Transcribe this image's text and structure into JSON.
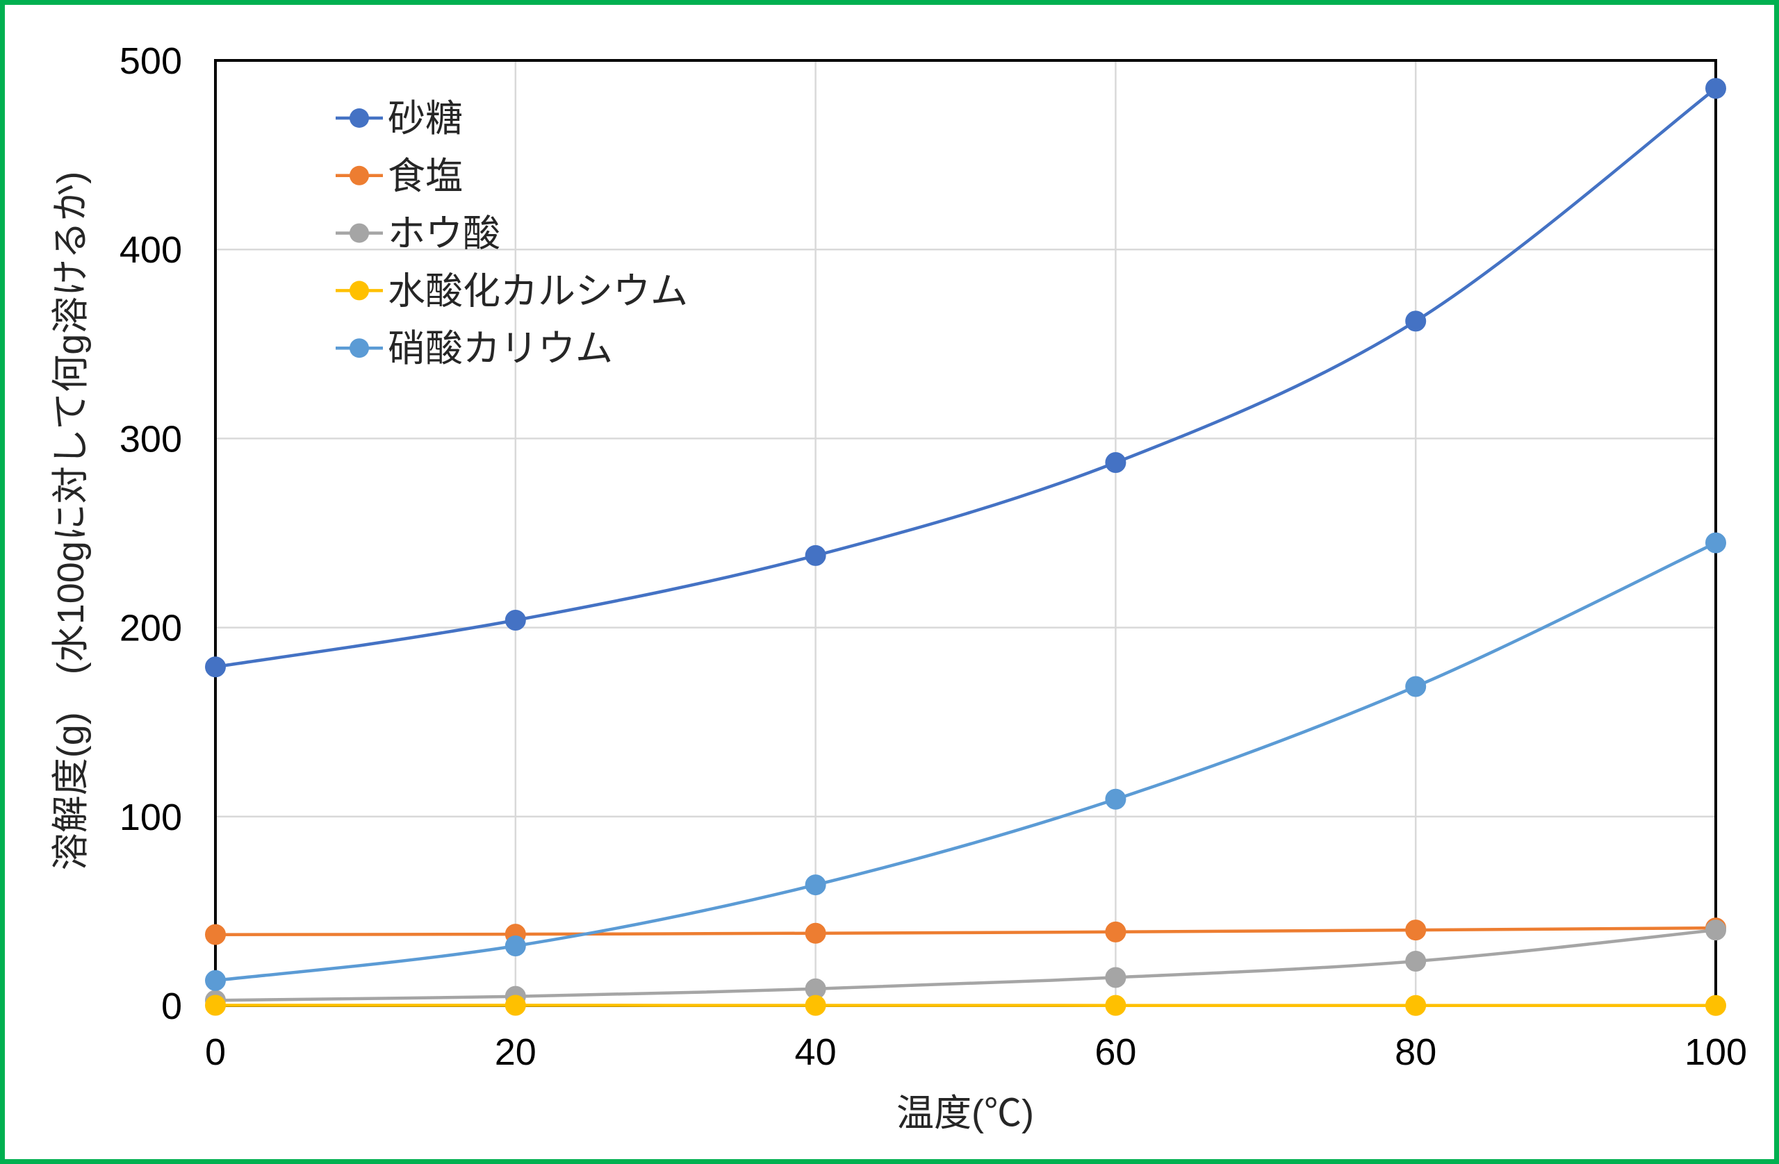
{
  "chart_data": {
    "type": "line",
    "xlabel": "温度(℃)",
    "ylabel": "溶解度(g)　(水100gに対して何g溶けるか)",
    "x": [
      0,
      20,
      40,
      60,
      80,
      100
    ],
    "xlim": [
      0,
      100
    ],
    "ylim": [
      0,
      500
    ],
    "xtick_labels": [
      "0",
      "20",
      "40",
      "60",
      "80",
      "100"
    ],
    "ytick_labels": [
      "0",
      "100",
      "200",
      "300",
      "400",
      "500"
    ],
    "grid": true,
    "smooth": true,
    "markers": true,
    "legend_position": "top-left",
    "series": [
      {
        "name": "砂糖",
        "color": "#4472C4",
        "values": [
          179.2,
          203.9,
          238.1,
          287.3,
          362.1,
          485.2
        ]
      },
      {
        "name": "食塩",
        "color": "#ED7D31",
        "values": [
          37.6,
          37.8,
          38.3,
          39.0,
          40.0,
          41.1
        ]
      },
      {
        "name": "ホウ酸",
        "color": "#A5A5A5",
        "values": [
          2.8,
          4.9,
          8.9,
          14.9,
          23.5,
          40.0
        ]
      },
      {
        "name": "水酸化カルシウム",
        "color": "#FFC000",
        "values": [
          0.19,
          0.17,
          0.14,
          0.12,
          0.09,
          0.07
        ]
      },
      {
        "name": "硝酸カリウム",
        "color": "#5B9BD5",
        "values": [
          13.3,
          31.6,
          63.9,
          109.2,
          168.8,
          244.8
        ]
      }
    ]
  },
  "colors": {
    "frame_border": "#00B050",
    "gridline": "#D9D9D9",
    "axis_line": "#000000"
  }
}
